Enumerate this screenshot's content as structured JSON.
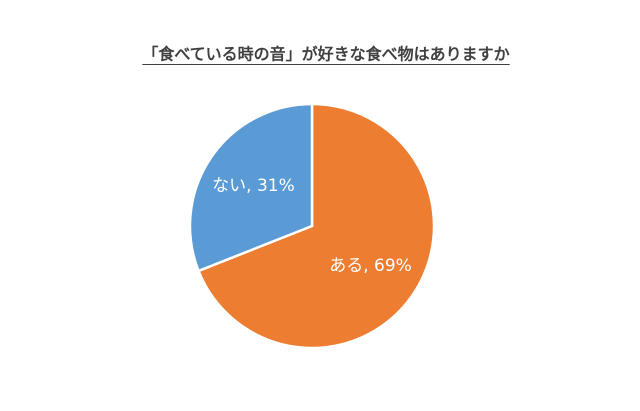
{
  "chart_data": {
    "type": "pie",
    "title": "「食べている時の音」が好きな食べ物はありますか",
    "values": [
      69,
      31
    ],
    "value_labels": [
      "ある, 69%",
      "ない, 31%"
    ],
    "colors": [
      "#ed7d31",
      "#5b9bd5"
    ]
  }
}
